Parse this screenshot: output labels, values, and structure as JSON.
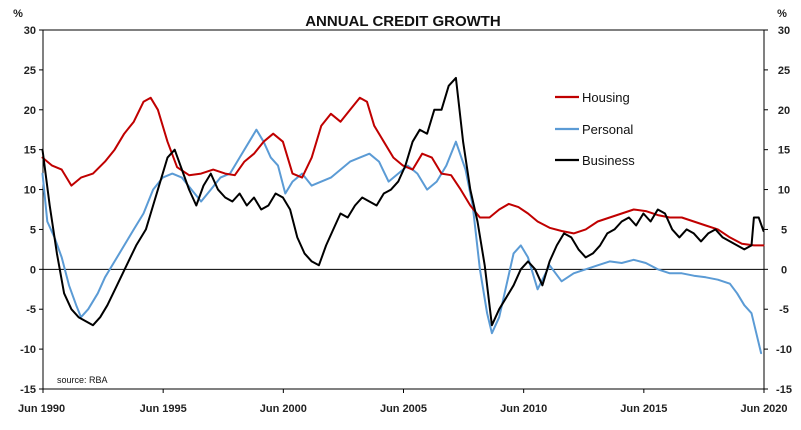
{
  "chart_data": {
    "type": "line",
    "title": "ANNUAL CREDIT GROWTH",
    "ylabel_left": "%",
    "ylabel_right": "%",
    "source": "source: RBA",
    "ylim": [
      -15,
      30
    ],
    "yticks": [
      30,
      25,
      20,
      15,
      10,
      5,
      0,
      -5,
      -10,
      -15
    ],
    "xlim": [
      1990.42,
      2020.42
    ],
    "xticks": [
      {
        "label": "Jun 1990",
        "value": 1990.42
      },
      {
        "label": "Jun 1995",
        "value": 1995.42
      },
      {
        "label": "Jun 2000",
        "value": 2000.42
      },
      {
        "label": "Jun 2005",
        "value": 2005.42
      },
      {
        "label": "Jun 2010",
        "value": 2010.42
      },
      {
        "label": "Jun 2015",
        "value": 2015.42
      },
      {
        "label": "Jun 2020",
        "value": 2020.42
      }
    ],
    "series": [
      {
        "name": "Housing",
        "color": "#c00000",
        "x": [
          1990.4,
          1990.8,
          1991.2,
          1991.6,
          1992.0,
          1992.5,
          1993.0,
          1993.4,
          1993.8,
          1994.2,
          1994.6,
          1994.9,
          1995.2,
          1995.6,
          1996.0,
          1996.5,
          1997.0,
          1997.5,
          1998.0,
          1998.4,
          1998.8,
          1999.2,
          1999.6,
          2000.0,
          2000.4,
          2000.8,
          2001.2,
          2001.6,
          2002.0,
          2002.4,
          2002.8,
          2003.2,
          2003.6,
          2003.9,
          2004.2,
          2004.6,
          2005.0,
          2005.4,
          2005.8,
          2006.2,
          2006.6,
          2007.0,
          2007.4,
          2007.8,
          2008.2,
          2008.6,
          2009.0,
          2009.4,
          2009.8,
          2010.2,
          2010.6,
          2011.0,
          2011.5,
          2012.0,
          2012.5,
          2013.0,
          2013.5,
          2014.0,
          2014.5,
          2015.0,
          2015.5,
          2016.0,
          2016.5,
          2017.0,
          2017.5,
          2018.0,
          2018.5,
          2019.0,
          2019.5,
          2020.0,
          2020.4
        ],
        "values": [
          14.0,
          13.0,
          12.5,
          10.5,
          11.5,
          12.0,
          13.5,
          15.0,
          17.0,
          18.5,
          21.0,
          21.5,
          20.0,
          16.0,
          12.8,
          11.8,
          12.0,
          12.5,
          12.0,
          11.8,
          13.5,
          14.5,
          16.0,
          17.0,
          16.0,
          12.0,
          11.5,
          14.0,
          18.0,
          19.5,
          18.5,
          20.0,
          21.5,
          21.0,
          18.0,
          16.0,
          14.0,
          13.0,
          12.5,
          14.5,
          14.0,
          12.0,
          11.8,
          10.0,
          8.0,
          6.5,
          6.5,
          7.5,
          8.2,
          7.8,
          7.0,
          6.0,
          5.2,
          4.8,
          4.5,
          5.0,
          6.0,
          6.5,
          7.0,
          7.5,
          7.3,
          6.8,
          6.5,
          6.5,
          6.0,
          5.5,
          5.0,
          4.0,
          3.2,
          3.0,
          3.0
        ]
      },
      {
        "name": "Personal",
        "color": "#5b9bd5",
        "x": [
          1990.4,
          1990.6,
          1990.9,
          1991.2,
          1991.5,
          1991.8,
          1992.0,
          1992.3,
          1992.7,
          1993.0,
          1993.4,
          1993.8,
          1994.2,
          1994.6,
          1995.0,
          1995.4,
          1995.8,
          1996.2,
          1996.6,
          1997.0,
          1997.4,
          1997.8,
          1998.2,
          1998.6,
          1999.0,
          1999.3,
          1999.6,
          1999.9,
          2000.2,
          2000.5,
          2000.8,
          2001.2,
          2001.6,
          2002.0,
          2002.4,
          2002.8,
          2003.2,
          2003.6,
          2004.0,
          2004.4,
          2004.8,
          2005.2,
          2005.6,
          2006.0,
          2006.4,
          2006.8,
          2007.2,
          2007.6,
          2008.0,
          2008.3,
          2008.6,
          2008.9,
          2009.1,
          2009.4,
          2009.7,
          2010.0,
          2010.3,
          2010.6,
          2011.0,
          2011.5,
          2012.0,
          2012.5,
          2013.0,
          2013.5,
          2014.0,
          2014.5,
          2015.0,
          2015.5,
          2016.0,
          2016.5,
          2017.0,
          2017.5,
          2018.0,
          2018.5,
          2019.0,
          2019.3,
          2019.6,
          2019.9,
          2020.1,
          2020.3
        ],
        "values": [
          12.0,
          6.0,
          4.0,
          1.5,
          -2.0,
          -4.5,
          -6.0,
          -5.0,
          -3.0,
          -1.0,
          1.0,
          3.0,
          5.0,
          7.0,
          10.0,
          11.5,
          12.0,
          11.5,
          10.0,
          8.5,
          10.0,
          11.5,
          12.0,
          14.0,
          16.0,
          17.5,
          16.0,
          14.0,
          13.0,
          9.5,
          11.0,
          12.0,
          10.5,
          11.0,
          11.5,
          12.5,
          13.5,
          14.0,
          14.5,
          13.5,
          11.0,
          12.0,
          13.0,
          12.0,
          10.0,
          11.0,
          13.0,
          16.0,
          12.5,
          8.0,
          0.0,
          -5.5,
          -8.0,
          -6.0,
          -2.0,
          2.0,
          3.0,
          1.5,
          -2.5,
          0.5,
          -1.5,
          -0.5,
          0.0,
          0.5,
          1.0,
          0.8,
          1.2,
          0.8,
          0.0,
          -0.5,
          -0.5,
          -0.8,
          -1.0,
          -1.3,
          -1.8,
          -3.0,
          -4.5,
          -5.5,
          -8.0,
          -10.5
        ]
      },
      {
        "name": "Business",
        "color": "#000000",
        "x": [
          1990.4,
          1990.7,
          1991.0,
          1991.3,
          1991.6,
          1991.9,
          1992.2,
          1992.5,
          1992.8,
          1993.1,
          1993.5,
          1993.9,
          1994.3,
          1994.7,
          1995.0,
          1995.3,
          1995.6,
          1995.9,
          1996.2,
          1996.5,
          1996.8,
          1997.1,
          1997.4,
          1997.7,
          1998.0,
          1998.3,
          1998.6,
          1998.9,
          1999.2,
          1999.5,
          1999.8,
          2000.1,
          2000.4,
          2000.7,
          2001.0,
          2001.3,
          2001.6,
          2001.9,
          2002.2,
          2002.5,
          2002.8,
          2003.1,
          2003.4,
          2003.7,
          2004.0,
          2004.3,
          2004.6,
          2004.9,
          2005.2,
          2005.5,
          2005.8,
          2006.1,
          2006.4,
          2006.7,
          2007.0,
          2007.3,
          2007.6,
          2007.9,
          2008.2,
          2008.5,
          2008.8,
          2009.1,
          2009.4,
          2009.7,
          2010.0,
          2010.3,
          2010.6,
          2010.9,
          2011.2,
          2011.5,
          2011.8,
          2012.1,
          2012.4,
          2012.7,
          2013.0,
          2013.3,
          2013.6,
          2013.9,
          2014.2,
          2014.5,
          2014.8,
          2015.1,
          2015.4,
          2015.7,
          2016.0,
          2016.3,
          2016.6,
          2016.9,
          2017.2,
          2017.5,
          2017.8,
          2018.1,
          2018.4,
          2018.7,
          2019.0,
          2019.3,
          2019.6,
          2019.9,
          2020.0,
          2020.2,
          2020.4
        ],
        "values": [
          15.0,
          8.0,
          2.0,
          -3.0,
          -5.0,
          -6.0,
          -6.5,
          -7.0,
          -6.0,
          -4.5,
          -2.0,
          0.5,
          3.0,
          5.0,
          8.0,
          11.0,
          14.0,
          15.0,
          12.5,
          10.0,
          8.0,
          10.5,
          12.0,
          10.0,
          9.0,
          8.5,
          9.5,
          8.0,
          9.0,
          7.5,
          8.0,
          9.5,
          9.0,
          7.5,
          4.0,
          2.0,
          1.0,
          0.5,
          3.0,
          5.0,
          7.0,
          6.5,
          8.0,
          9.0,
          8.5,
          8.0,
          9.5,
          10.0,
          11.0,
          13.0,
          16.0,
          17.5,
          17.0,
          20.0,
          20.0,
          23.0,
          24.0,
          16.0,
          10.0,
          6.0,
          0.5,
          -7.0,
          -5.0,
          -3.5,
          -2.0,
          0.0,
          1.0,
          0.0,
          -2.0,
          1.0,
          3.0,
          4.5,
          4.0,
          2.5,
          1.5,
          2.0,
          3.0,
          4.5,
          5.0,
          6.0,
          6.5,
          5.5,
          7.0,
          6.0,
          7.5,
          7.0,
          5.0,
          4.0,
          5.0,
          4.5,
          3.5,
          4.5,
          5.0,
          4.0,
          3.5,
          3.0,
          2.5,
          3.0,
          6.5,
          6.5,
          4.8
        ]
      }
    ],
    "legend": {
      "position": "right-inside",
      "items": [
        {
          "label": "Housing",
          "color": "#c00000"
        },
        {
          "label": "Personal",
          "color": "#5b9bd5"
        },
        {
          "label": "Business",
          "color": "#000000"
        }
      ]
    }
  }
}
